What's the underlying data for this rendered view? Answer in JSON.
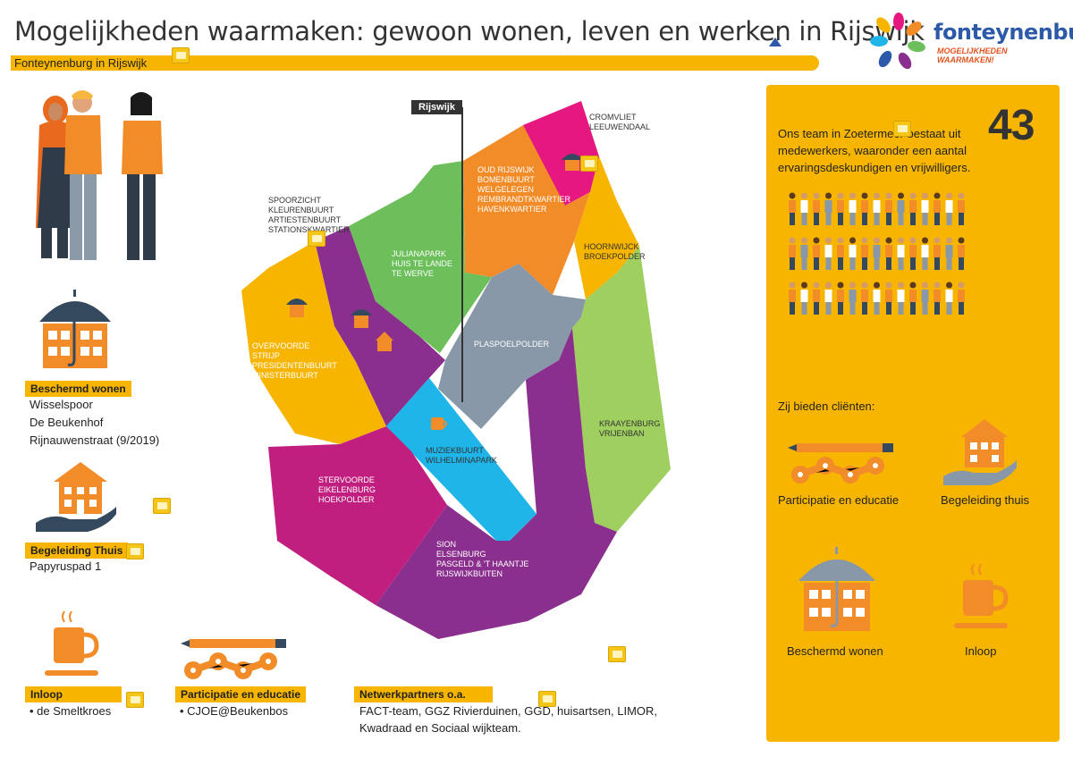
{
  "header": {
    "title": "Mogelijkheden waarmaken: gewoon wonen, leven en werken in Rijswijk",
    "subtitle": "Fonteynenburg in Rijswijk"
  },
  "logo": {
    "name": "fonteynenburg",
    "tagline": "MOGELIJKHEDEN WAARMAKEN!"
  },
  "colors": {
    "accent_yellow": "#f7b500",
    "orange": "#f28c28",
    "dark_blue": "#34495e"
  },
  "left": {
    "beschermd_wonen": {
      "label": "Beschermd wonen",
      "items": [
        "Wisselspoor",
        "De Beukenhof",
        "Rijnauwenstraat (9/2019)"
      ]
    },
    "begeleiding_thuis": {
      "label": "Begeleiding Thuis",
      "items": [
        "Papyruspad 1"
      ]
    },
    "inloop": {
      "label": "Inloop",
      "items": [
        "• de Smeltkroes"
      ]
    },
    "participatie": {
      "label": "Participatie en educatie",
      "items": [
        "• CJOE@Beukenbos"
      ]
    },
    "netwerk": {
      "label": "Netwerkpartners o.a.",
      "items": [
        "FACT-team, GGZ Rivierduinen, GGD, huisartsen, LIMOR,",
        "Kwadraad en Sociaal wijkteam."
      ]
    }
  },
  "map": {
    "flag": "Rijswijk",
    "districts": [
      {
        "label": "CROMVLIET\nLEEUWENDAAL",
        "color": "#e6177f"
      },
      {
        "label": "OUD RIJSWIJK\nBOMENBUURT\nWELGELEGEN\nREMBRANDTKWARTIER\nHAVENKWARTIER",
        "color": "#f28c28"
      },
      {
        "label": "SPOORZICHT\nKLEURENBUURT\nARTIESTENBUURT\nSTATIONSKWARTIER",
        "color": "#8b2f8f"
      },
      {
        "label": "JULIANAPARK\nHUIS TE LANDE\nTE WERVE",
        "color": "#6cbf5a"
      },
      {
        "label": "HOORNWIJCK\nBROEKPOLDER",
        "color": "#f7b500"
      },
      {
        "label": "OVERVOORDE\nSTRIJP\nPRESIDENTENBUURT\nMINISTERBUURT",
        "color": "#f7b500"
      },
      {
        "label": "PLASPOELPOLDER",
        "color": "#8898a8"
      },
      {
        "label": "KRAAYENBURG\nVRIJENBAN",
        "color": "#9fcf5f"
      },
      {
        "label": "MUZIEKBUURT\nWILHELMINAPARK",
        "color": "#1fb5e8"
      },
      {
        "label": "STERVOORDE\nEIKELENBURG\nHOEKPOLDER",
        "color": "#c11f7f"
      },
      {
        "label": "SION\nELSENBURG\nPASGELD & 'T HAANTJE\nRIJSWIJKBUITEN",
        "color": "#8b2f8f"
      }
    ]
  },
  "panel": {
    "team_line1": "Ons team in Zoetermeer bestaat uit",
    "team_line2": "medewerkers, waaronder een aantal",
    "team_line3": "ervaringsdeskundigen en vrijwilligers.",
    "team_count": "43",
    "offer_heading": "Zij bieden cliënten:",
    "offers": [
      {
        "label": "Participatie en educatie",
        "icon": "pencil-chain-icon"
      },
      {
        "label": "Begeleiding thuis",
        "icon": "house-hand-icon"
      },
      {
        "label": "Beschermd wonen",
        "icon": "umbrella-house-icon"
      },
      {
        "label": "Inloop",
        "icon": "coffee-cup-icon"
      }
    ]
  }
}
